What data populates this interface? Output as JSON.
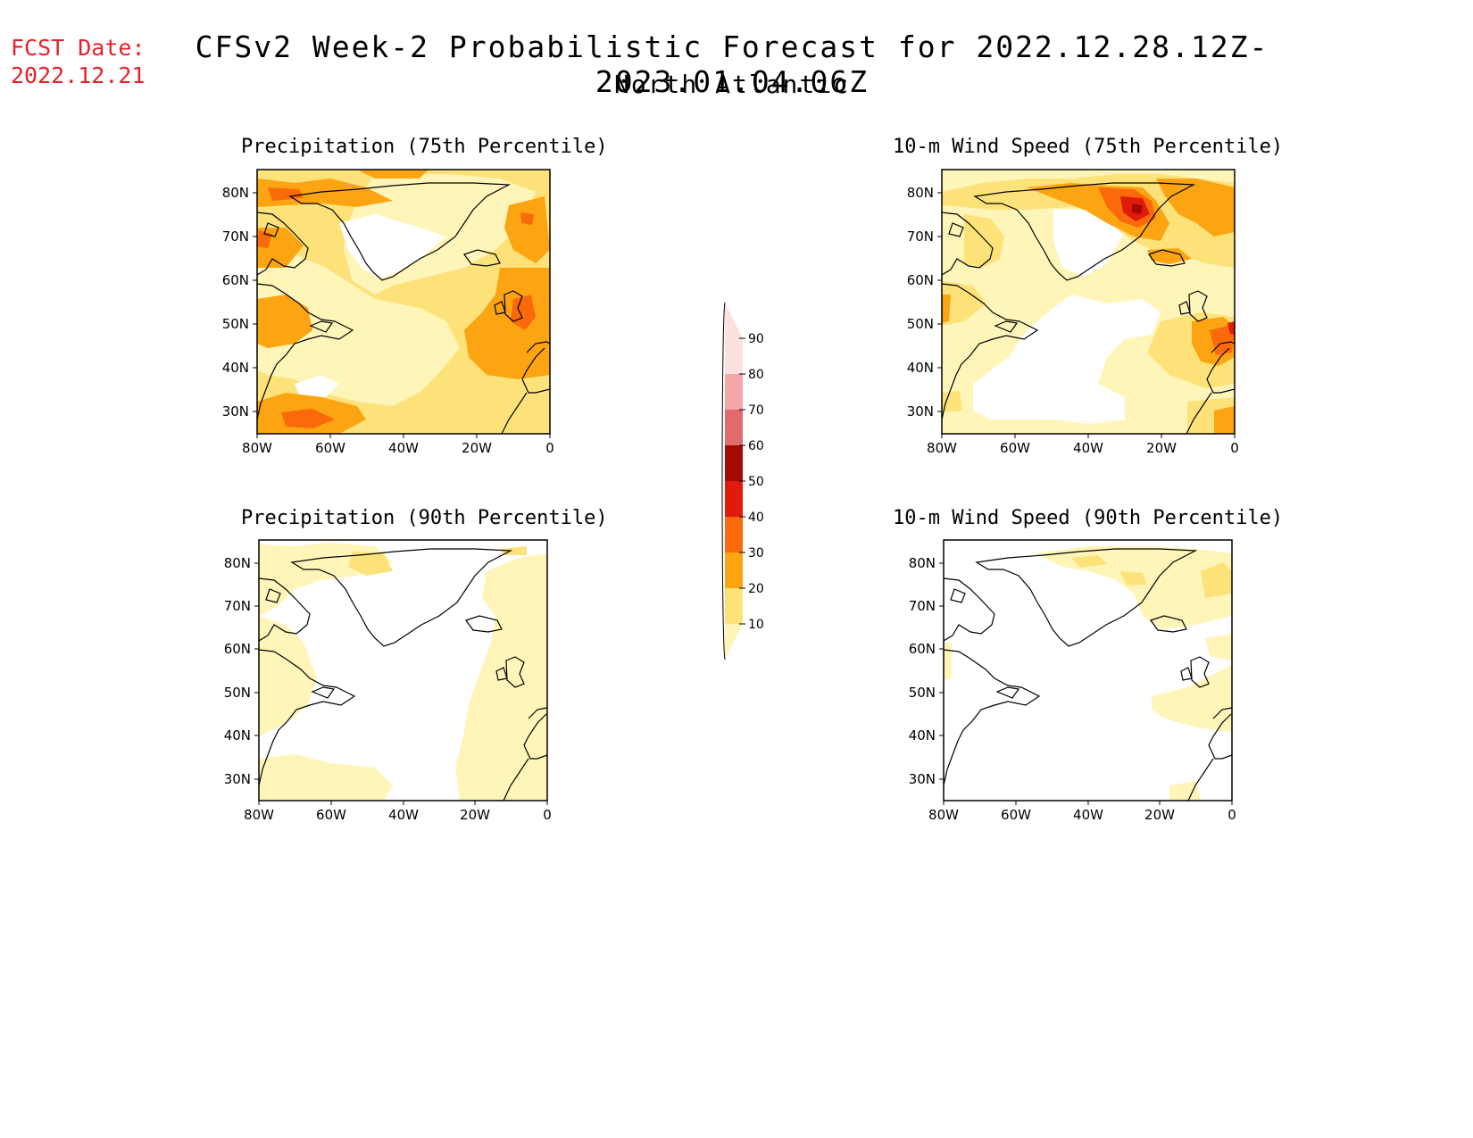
{
  "fcst_date": {
    "label": "FCST Date:",
    "value": "2022.12.21"
  },
  "header": {
    "title": "CFSv2 Week-2 Probabilistic Forecast for 2022.12.28.12Z-2023.01.04.06Z",
    "subtitle": "North Atlantic"
  },
  "axes": {
    "lat_labels": [
      "80N",
      "70N",
      "60N",
      "50N",
      "40N",
      "30N"
    ],
    "lon_labels": [
      "80W",
      "60W",
      "40W",
      "20W",
      "0"
    ],
    "lat_range": [
      25,
      85
    ],
    "lon_range": [
      -80,
      0
    ]
  },
  "panels": [
    {
      "id": "precip-75",
      "title": "Precipitation (75th Percentile)"
    },
    {
      "id": "wind-75",
      "title": "10-m Wind Speed (75th Percentile)"
    },
    {
      "id": "precip-90",
      "title": "Precipitation (90th Percentile)"
    },
    {
      "id": "wind-90",
      "title": "10-m Wind Speed (90th Percentile)"
    }
  ],
  "colorbar": {
    "levels": [
      "10",
      "20",
      "30",
      "40",
      "50",
      "60",
      "70",
      "80",
      "90"
    ],
    "colors": [
      "#fff5b8",
      "#fde27a",
      "#fca411",
      "#fa6a0a",
      "#e11b0c",
      "#a30a02",
      "#e06a6c",
      "#f4a6a8",
      "#fde0e0"
    ]
  }
}
